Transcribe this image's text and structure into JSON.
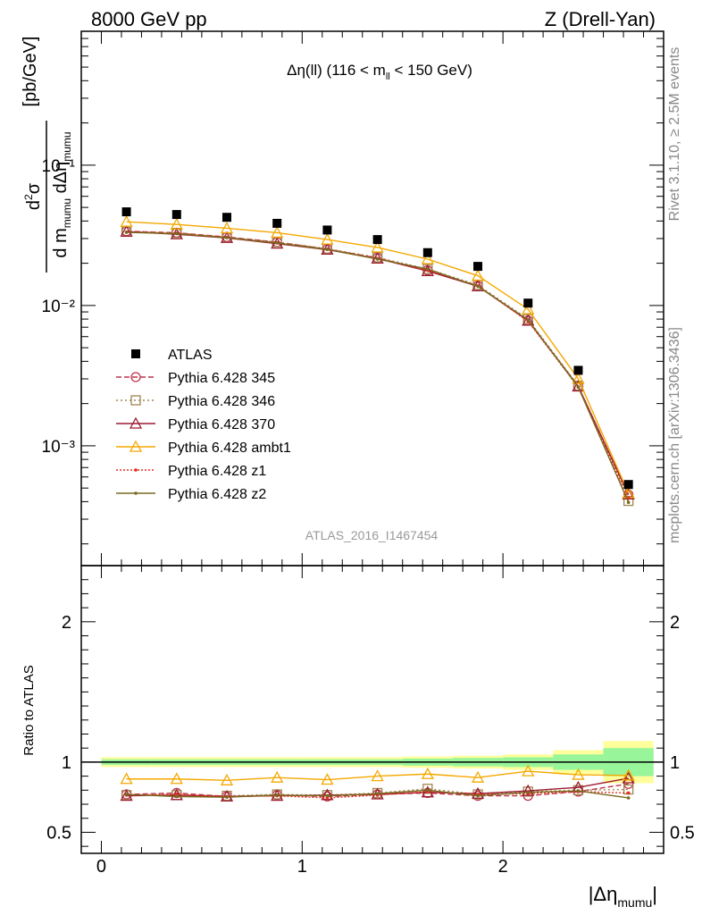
{
  "header": {
    "left": "8000 GeV pp",
    "right": "Z (Drell-Yan)"
  },
  "side": {
    "rivet": "Rivet 3.1.10, ≥ 2.5M events",
    "mcplots": "mcplots.cern.ch [arXiv:1306.3436]"
  },
  "chart_data": {
    "type": "line",
    "title": "Δη(ll) (116 < m_ll < 150 GeV)",
    "title_parts": {
      "pre": "Δη(ll) (116 < m",
      "sub": "ll",
      "post": " < 150 GeV)"
    },
    "watermark": "ATLAS_2016_I1467454",
    "xlabel": "|Δη_mumu|",
    "ylabel": "d²σ / d m_mumu dΔη_mumu [pb/GeV]",
    "ratio_ylabel": "Ratio to ATLAS",
    "xlim": [
      -0.1,
      2.8
    ],
    "ylim": [
      0.00014,
      0.9
    ],
    "yscale": "log",
    "ratio_ylim": [
      0.35,
      2.4
    ],
    "x_ticks": [
      "0",
      "1",
      "2"
    ],
    "main_y_ticks": [
      "10⁻³",
      "10⁻²",
      "10⁻¹"
    ],
    "ratio_y_ticks": [
      "0.5",
      "1",
      "2"
    ],
    "legend_position": "middle-left",
    "x": [
      0.125,
      0.375,
      0.625,
      0.875,
      1.125,
      1.375,
      1.625,
      1.875,
      2.125,
      2.375,
      2.625
    ],
    "bin_edges": [
      0,
      0.25,
      0.5,
      0.75,
      1.0,
      1.25,
      1.5,
      1.75,
      2.0,
      2.25,
      2.5,
      2.75
    ],
    "data": {
      "name": "ATLAS",
      "values": [
        0.0465,
        0.0445,
        0.0425,
        0.0385,
        0.0345,
        0.0295,
        0.0238,
        0.019,
        0.0104,
        0.00345,
        0.00053
      ],
      "band_stat": [
        0.02,
        0.02,
        0.02,
        0.02,
        0.02,
        0.02,
        0.025,
        0.03,
        0.035,
        0.055,
        0.1
      ],
      "band_total": [
        0.035,
        0.035,
        0.035,
        0.035,
        0.035,
        0.035,
        0.04,
        0.045,
        0.055,
        0.085,
        0.15
      ]
    },
    "series": [
      {
        "name": "Pythia 6.428 345",
        "color": "#c0344c",
        "dash": "6,3",
        "marker": "circle",
        "values": [
          0.0338,
          0.033,
          0.0308,
          0.0283,
          0.0252,
          0.0218,
          0.0178,
          0.0138,
          0.0078,
          0.00266,
          0.000448
        ],
        "ratio": [
          0.77,
          0.78,
          0.755,
          0.765,
          0.755,
          0.77,
          0.78,
          0.76,
          0.76,
          0.79,
          0.845
        ]
      },
      {
        "name": "Pythia 6.428 346",
        "color": "#a08650",
        "dash": "2,3",
        "marker": "square",
        "values": [
          0.0335,
          0.0329,
          0.0306,
          0.0283,
          0.0254,
          0.022,
          0.0182,
          0.014,
          0.008,
          0.00268,
          0.000405
        ],
        "ratio": [
          0.765,
          0.765,
          0.76,
          0.77,
          0.765,
          0.78,
          0.81,
          0.77,
          0.79,
          0.8,
          0.805
        ]
      },
      {
        "name": "Pythia 6.428 370",
        "color": "#9b1b30",
        "dash": "",
        "marker": "triangle",
        "values": [
          0.0336,
          0.0322,
          0.0303,
          0.0276,
          0.025,
          0.0216,
          0.0176,
          0.0137,
          0.0078,
          0.00265,
          0.00045
        ],
        "ratio": [
          0.76,
          0.765,
          0.755,
          0.76,
          0.765,
          0.77,
          0.785,
          0.775,
          0.795,
          0.82,
          0.885
        ]
      },
      {
        "name": "Pythia 6.428 ambt1",
        "color": "#f4a800",
        "dash": "",
        "marker": "triangle",
        "values": [
          0.0395,
          0.0378,
          0.0355,
          0.033,
          0.0295,
          0.0259,
          0.0214,
          0.0163,
          0.0094,
          0.003,
          0.00046
        ],
        "ratio": [
          0.88,
          0.88,
          0.87,
          0.89,
          0.875,
          0.9,
          0.915,
          0.89,
          0.935,
          0.91,
          0.905
        ]
      },
      {
        "name": "Pythia 6.428 z1",
        "color": "#e03020",
        "dash": "2,2",
        "marker": "dot",
        "values": [
          0.0334,
          0.0328,
          0.0306,
          0.028,
          0.0252,
          0.0216,
          0.0178,
          0.0138,
          0.0077,
          0.00262,
          0.000425
        ],
        "ratio": [
          0.765,
          0.77,
          0.755,
          0.76,
          0.745,
          0.765,
          0.79,
          0.77,
          0.775,
          0.79,
          0.78
        ]
      },
      {
        "name": "Pythia 6.428 z2",
        "color": "#7a6a20",
        "dash": "",
        "marker": "dot",
        "values": [
          0.0332,
          0.0325,
          0.0304,
          0.0279,
          0.0251,
          0.0214,
          0.0182,
          0.0137,
          0.0079,
          0.00262,
          0.000395
        ],
        "ratio": [
          0.77,
          0.755,
          0.75,
          0.765,
          0.76,
          0.775,
          0.8,
          0.76,
          0.785,
          0.795,
          0.745
        ]
      }
    ]
  }
}
